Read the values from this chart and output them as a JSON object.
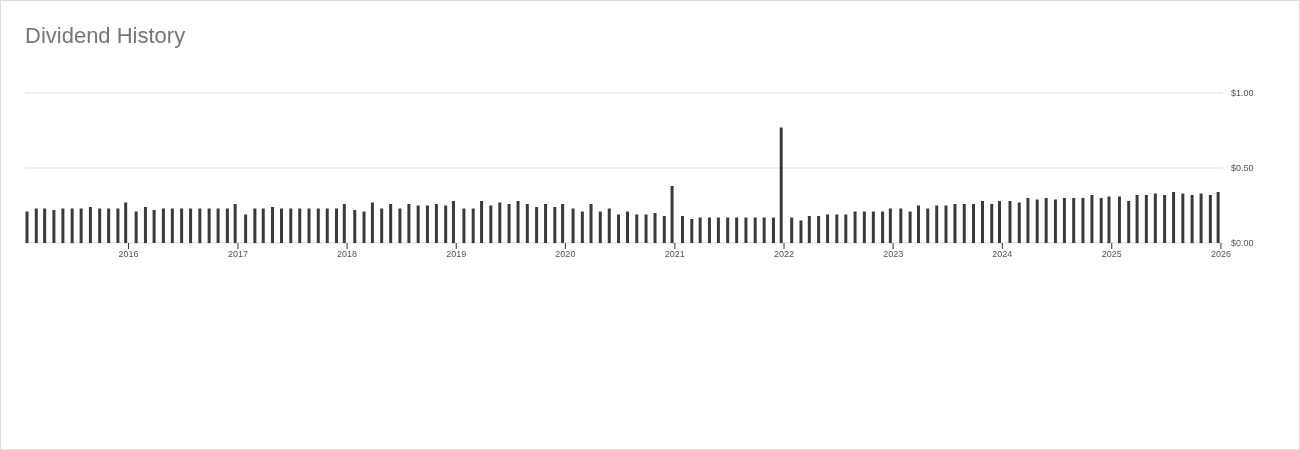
{
  "chart_data": {
    "type": "bar",
    "title": "Dividend History",
    "x": [
      "2015-01-28",
      "2015-02-28",
      "2015-03-28",
      "2015-04-28",
      "2015-05-28",
      "2015-06-28",
      "2015-07-28",
      "2015-08-28",
      "2015-09-28",
      "2015-10-28",
      "2015-11-28",
      "2015-12-24",
      "2016-01-28",
      "2016-02-28",
      "2016-03-28",
      "2016-04-28",
      "2016-05-28",
      "2016-06-28",
      "2016-07-28",
      "2016-08-28",
      "2016-09-28",
      "2016-10-28",
      "2016-11-28",
      "2016-12-24",
      "2017-01-28",
      "2017-02-28",
      "2017-03-28",
      "2017-04-28",
      "2017-05-28",
      "2017-06-28",
      "2017-07-28",
      "2017-08-28",
      "2017-09-28",
      "2017-10-28",
      "2017-11-28",
      "2017-12-24",
      "2018-01-28",
      "2018-02-28",
      "2018-03-28",
      "2018-04-28",
      "2018-05-28",
      "2018-06-28",
      "2018-07-28",
      "2018-08-28",
      "2018-09-28",
      "2018-10-28",
      "2018-11-28",
      "2018-12-24",
      "2019-01-28",
      "2019-02-28",
      "2019-03-28",
      "2019-04-28",
      "2019-05-28",
      "2019-06-28",
      "2019-07-28",
      "2019-08-28",
      "2019-09-28",
      "2019-10-28",
      "2019-11-28",
      "2019-12-24",
      "2020-01-28",
      "2020-02-28",
      "2020-03-28",
      "2020-04-28",
      "2020-05-28",
      "2020-06-28",
      "2020-07-28",
      "2020-08-28",
      "2020-09-28",
      "2020-10-28",
      "2020-11-28",
      "2020-12-24",
      "2021-01-28",
      "2021-02-28",
      "2021-03-28",
      "2021-04-28",
      "2021-05-28",
      "2021-06-28",
      "2021-07-28",
      "2021-08-28",
      "2021-09-28",
      "2021-10-28",
      "2021-11-28",
      "2021-12-24",
      "2022-01-28",
      "2022-02-28",
      "2022-03-28",
      "2022-04-28",
      "2022-05-28",
      "2022-06-28",
      "2022-07-28",
      "2022-08-28",
      "2022-09-28",
      "2022-10-28",
      "2022-11-28",
      "2022-12-24",
      "2023-01-28",
      "2023-02-28",
      "2023-03-28",
      "2023-04-28",
      "2023-05-28",
      "2023-06-28",
      "2023-07-28",
      "2023-08-28",
      "2023-09-28",
      "2023-10-28",
      "2023-11-28",
      "2023-12-24",
      "2024-01-28",
      "2024-02-28",
      "2024-03-28",
      "2024-04-28",
      "2024-05-28",
      "2024-06-28",
      "2024-07-28",
      "2024-08-28",
      "2024-09-28",
      "2024-10-28",
      "2024-11-28",
      "2024-12-24",
      "2025-01-28",
      "2025-02-28",
      "2025-03-28",
      "2025-04-28",
      "2025-05-28",
      "2025-06-28",
      "2025-07-28",
      "2025-08-28",
      "2025-09-28",
      "2025-10-28",
      "2025-11-28",
      "2025-12-24"
    ],
    "values": [
      0.21,
      0.23,
      0.23,
      0.22,
      0.23,
      0.23,
      0.23,
      0.24,
      0.23,
      0.23,
      0.23,
      0.27,
      0.21,
      0.24,
      0.22,
      0.23,
      0.23,
      0.23,
      0.23,
      0.23,
      0.23,
      0.23,
      0.23,
      0.26,
      0.19,
      0.23,
      0.23,
      0.24,
      0.23,
      0.23,
      0.23,
      0.23,
      0.23,
      0.23,
      0.23,
      0.26,
      0.22,
      0.21,
      0.27,
      0.23,
      0.26,
      0.23,
      0.26,
      0.25,
      0.25,
      0.26,
      0.25,
      0.28,
      0.23,
      0.23,
      0.28,
      0.25,
      0.27,
      0.26,
      0.28,
      0.26,
      0.24,
      0.26,
      0.24,
      0.26,
      0.23,
      0.21,
      0.26,
      0.21,
      0.23,
      0.19,
      0.21,
      0.19,
      0.19,
      0.2,
      0.18,
      0.38,
      0.18,
      0.16,
      0.17,
      0.17,
      0.17,
      0.17,
      0.17,
      0.17,
      0.17,
      0.17,
      0.17,
      0.77,
      0.17,
      0.15,
      0.18,
      0.18,
      0.19,
      0.19,
      0.19,
      0.21,
      0.21,
      0.21,
      0.21,
      0.23,
      0.23,
      0.21,
      0.25,
      0.23,
      0.25,
      0.25,
      0.26,
      0.26,
      0.26,
      0.28,
      0.26,
      0.28,
      0.28,
      0.27,
      0.3,
      0.29,
      0.3,
      0.29,
      0.3,
      0.3,
      0.3,
      0.32,
      0.3,
      0.31,
      0.31,
      0.28,
      0.32,
      0.32,
      0.33,
      0.32,
      0.34,
      0.33,
      0.32,
      0.33,
      0.32,
      0.34
    ],
    "color": "#3a3a3c",
    "xlim": [
      "2015-01-20",
      "2026-01-08"
    ],
    "xticks": [
      {
        "value": "2016-01-01",
        "label": "2016"
      },
      {
        "value": "2017-01-01",
        "label": "2017"
      },
      {
        "value": "2018-01-01",
        "label": "2018"
      },
      {
        "value": "2019-01-01",
        "label": "2019"
      },
      {
        "value": "2020-01-01",
        "label": "2020"
      },
      {
        "value": "2021-01-01",
        "label": "2021"
      },
      {
        "value": "2022-01-01",
        "label": "2022"
      },
      {
        "value": "2023-01-01",
        "label": "2023"
      },
      {
        "value": "2024-01-01",
        "label": "2024"
      },
      {
        "value": "2025-01-01",
        "label": "2025"
      },
      {
        "value": "2026-01-01",
        "label": "2026"
      }
    ],
    "ylim": [
      0,
      1
    ],
    "yticks": [
      {
        "value": 0,
        "label": "$0.00"
      },
      {
        "value": 0.5,
        "label": "$0.50"
      },
      {
        "value": 1,
        "label": "$1.00"
      }
    ],
    "grid": "y",
    "legend": false
  }
}
